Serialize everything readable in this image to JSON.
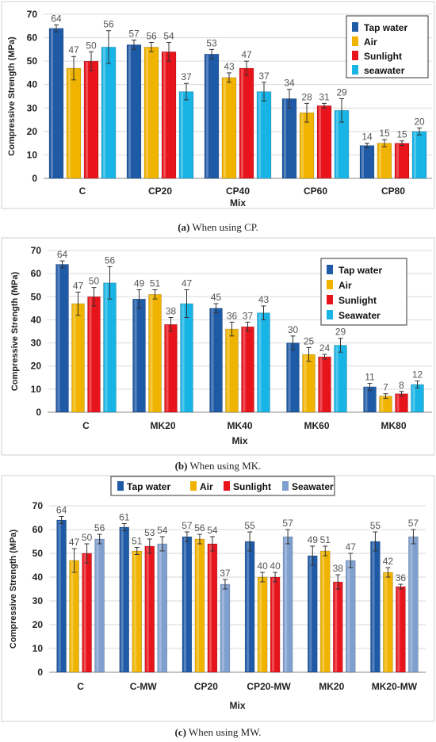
{
  "chart_data": [
    {
      "type": "bar",
      "title": "",
      "xlabel": "Mix",
      "ylabel": "Compressive Strength (MPa)",
      "ylim": [
        0,
        70
      ],
      "yticks": [
        0,
        10,
        20,
        30,
        40,
        50,
        60,
        70
      ],
      "categories": [
        "C",
        "CP20",
        "CP40",
        "CP60",
        "CP80"
      ],
      "series": [
        {
          "name": "Tap water",
          "color": "#1f5aa6",
          "values": [
            64,
            57,
            53,
            34,
            14
          ],
          "err": [
            1.5,
            2,
            2,
            4,
            1
          ]
        },
        {
          "name": "Air",
          "color": "#f0b400",
          "values": [
            47,
            56,
            43,
            28,
            15
          ],
          "err": [
            5,
            2,
            2,
            4,
            1.5
          ]
        },
        {
          "name": "Sunlight",
          "color": "#e8141c",
          "values": [
            50,
            54,
            47,
            31,
            15
          ],
          "err": [
            4,
            4,
            3,
            1,
            1
          ]
        },
        {
          "name": "seawater",
          "color": "#19b4e6",
          "values": [
            56,
            37,
            37,
            29,
            20
          ],
          "err": [
            7,
            3.5,
            4,
            5,
            1.5
          ]
        }
      ],
      "legend_position": "top-right",
      "grid": true,
      "caption_label": "(a)",
      "caption_text": " When using CP."
    },
    {
      "type": "bar",
      "title": "",
      "xlabel": "Mix",
      "ylabel": "Compressive Strength (MPa)",
      "ylim": [
        0,
        70
      ],
      "yticks": [
        0,
        10,
        20,
        30,
        40,
        50,
        60,
        70
      ],
      "categories": [
        "C",
        "MK20",
        "MK40",
        "MK60",
        "MK80"
      ],
      "series": [
        {
          "name": "Tap water",
          "color": "#1f5aa6",
          "values": [
            64,
            49,
            45,
            30,
            11
          ],
          "err": [
            1.5,
            4,
            2,
            3,
            1.5
          ]
        },
        {
          "name": "Air",
          "color": "#f0b400",
          "values": [
            47,
            51,
            36,
            25,
            7
          ],
          "err": [
            5,
            2,
            3,
            3,
            1
          ]
        },
        {
          "name": "Sunlight",
          "color": "#e8141c",
          "values": [
            50,
            38,
            37,
            24,
            8
          ],
          "err": [
            4,
            3,
            2,
            1,
            1
          ]
        },
        {
          "name": "Seawater",
          "color": "#19b4e6",
          "values": [
            56,
            47,
            43,
            29,
            12
          ],
          "err": [
            7,
            6,
            3,
            3,
            1.5
          ]
        }
      ],
      "legend_position": "top-right",
      "grid": true,
      "caption_label": "(b)",
      "caption_text": " When using MK."
    },
    {
      "type": "bar",
      "title": "",
      "xlabel": "Mix",
      "ylabel": "Compressive Strength (MPa)",
      "ylim": [
        0,
        70
      ],
      "yticks": [
        0,
        10,
        20,
        30,
        40,
        50,
        60,
        70
      ],
      "categories": [
        "C",
        "C-MW",
        "CP20",
        "CP20-MW",
        "MK20",
        "MK20-MW"
      ],
      "series": [
        {
          "name": "Tap water",
          "color": "#1f5aa6",
          "values": [
            64,
            61,
            57,
            55,
            49,
            55
          ],
          "err": [
            1.5,
            1.5,
            2,
            4,
            4,
            4
          ]
        },
        {
          "name": "Air",
          "color": "#f0b400",
          "values": [
            47,
            51,
            56,
            40,
            51,
            42
          ],
          "err": [
            5,
            1.5,
            2,
            2,
            2,
            2
          ]
        },
        {
          "name": "Sunlight",
          "color": "#e8141c",
          "values": [
            50,
            53,
            54,
            40,
            38,
            36
          ],
          "err": [
            4,
            3,
            3,
            2,
            3,
            1
          ]
        },
        {
          "name": "Seawater",
          "color": "#7f9fcf",
          "values": [
            56,
            54,
            37,
            57,
            47,
            57
          ],
          "err": [
            2,
            3,
            2,
            3,
            3,
            3
          ]
        }
      ],
      "legend_position": "top",
      "grid": true,
      "caption_label": "(c)",
      "caption_text": " When using MW."
    }
  ]
}
